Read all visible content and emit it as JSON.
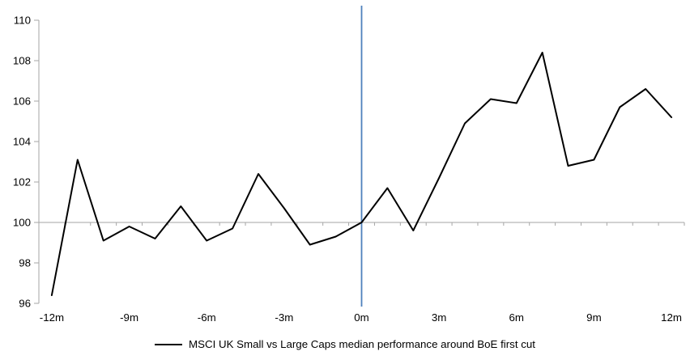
{
  "chart_data": {
    "type": "line",
    "title": "",
    "x": [
      -12,
      -11,
      -10,
      -9,
      -8,
      -7,
      -6,
      -5,
      -4,
      -3,
      -2,
      -1,
      0,
      1,
      2,
      3,
      4,
      5,
      6,
      7,
      8,
      9,
      10,
      11,
      12
    ],
    "x_tick_positions": [
      -12,
      -9,
      -6,
      -3,
      0,
      3,
      6,
      9,
      12
    ],
    "x_tick_labels": [
      "-12m",
      "-9m",
      "-6m",
      "-3m",
      "0m",
      "3m",
      "6m",
      "9m",
      "12m"
    ],
    "series": [
      {
        "name": "MSCI UK Small vs Large Caps median performance around BoE first cut",
        "color": "#000000",
        "values": [
          96.4,
          103.1,
          99.1,
          99.8,
          99.2,
          100.8,
          99.1,
          99.7,
          102.4,
          100.7,
          98.9,
          99.3,
          100.0,
          101.7,
          99.6,
          102.2,
          104.9,
          106.1,
          105.9,
          108.4,
          102.8,
          103.1,
          105.7,
          106.6,
          105.2
        ]
      }
    ],
    "ylim": [
      96,
      110
    ],
    "y_ticks": [
      96,
      98,
      100,
      102,
      104,
      106,
      108,
      110
    ],
    "baseline_value": 100,
    "event_line_x": 0,
    "event_line_color": "#4F81BD",
    "axis_color": "#A6A6A6",
    "grid": "none",
    "legend_position": "bottom"
  }
}
